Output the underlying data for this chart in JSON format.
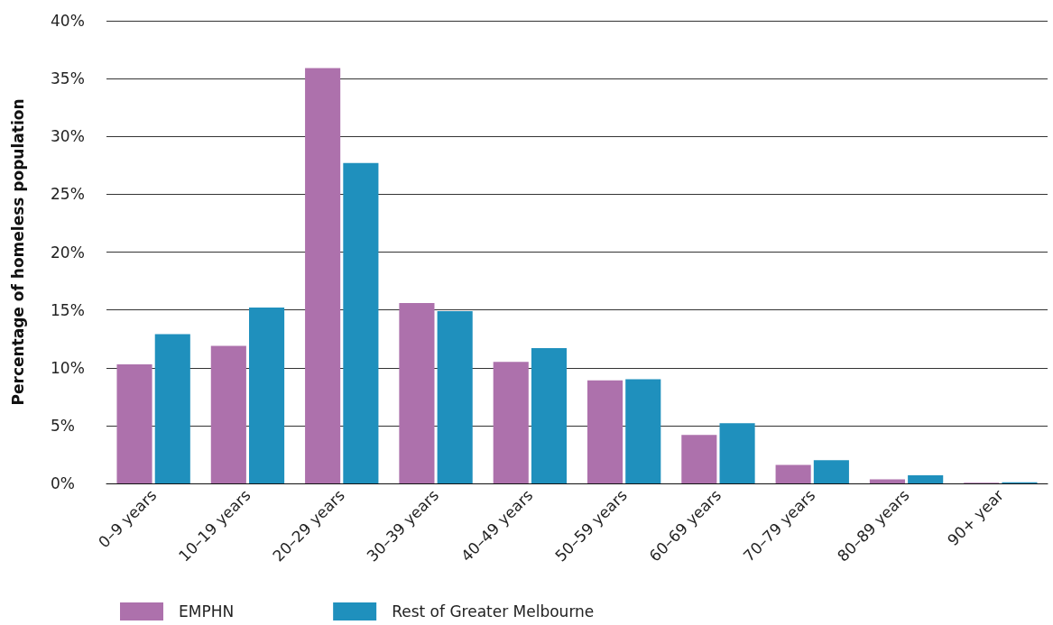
{
  "chart_data": {
    "type": "bar",
    "ylabel": "Percentage of homeless population",
    "categories": [
      "0–9 years",
      "10–19 years",
      "20–29 years",
      "30–39 years",
      "40–49 years",
      "50–59 years",
      "60–69 years",
      "70–79 years",
      "80–89 years",
      "90+ year"
    ],
    "series": [
      {
        "name": "EMPHN",
        "color": "#ad71ac",
        "values": [
          10.3,
          11.9,
          35.9,
          15.6,
          10.5,
          8.9,
          4.2,
          1.6,
          0.35,
          0.05
        ]
      },
      {
        "name": "Rest of Greater Melbourne",
        "color": "#1f90bd",
        "values": [
          12.9,
          15.2,
          27.7,
          14.9,
          11.7,
          9.0,
          5.2,
          2.0,
          0.7,
          0.1
        ]
      }
    ],
    "ylim": [
      0,
      40
    ],
    "yticks": [
      {
        "value": 0,
        "label": "0%"
      },
      {
        "value": 5,
        "label": "5%"
      },
      {
        "value": 10,
        "label": "10%"
      },
      {
        "value": 15,
        "label": "15%"
      },
      {
        "value": 20,
        "label": "20%"
      },
      {
        "value": 25,
        "label": "25%"
      },
      {
        "value": 30,
        "label": "30%"
      },
      {
        "value": 35,
        "label": "35%"
      },
      {
        "value": 40,
        "label": "40%"
      }
    ],
    "grid": "y",
    "legend": "bottom left"
  }
}
